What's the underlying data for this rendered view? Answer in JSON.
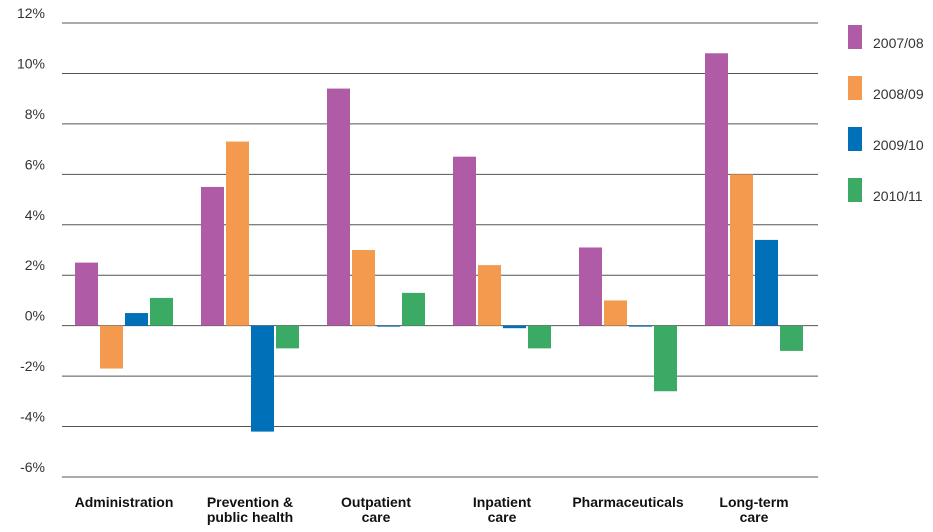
{
  "chart_data": {
    "type": "bar",
    "categories": [
      [
        "Administration"
      ],
      [
        "Prevention &",
        "public health"
      ],
      [
        "Outpatient",
        "care"
      ],
      [
        "Inpatient",
        "care"
      ],
      [
        "Pharmaceuticals"
      ],
      [
        "Long-term",
        "care"
      ]
    ],
    "series": [
      {
        "name": "2007/08",
        "color": "#b05ba5",
        "values": [
          2.5,
          5.5,
          9.4,
          6.7,
          3.1,
          10.8
        ]
      },
      {
        "name": "2008/09",
        "color": "#f39a4f",
        "values": [
          -1.7,
          7.3,
          3.0,
          2.4,
          1.0,
          6.0
        ]
      },
      {
        "name": "2009/10",
        "color": "#0070b8",
        "values": [
          0.5,
          -4.2,
          0.0,
          -0.1,
          0.0,
          3.4
        ]
      },
      {
        "name": "2010/11",
        "color": "#3aaa65",
        "values": [
          1.1,
          -0.9,
          1.3,
          -0.9,
          -2.6,
          -1.0
        ]
      }
    ],
    "yticks": [
      "-6%",
      "-4%",
      "-2%",
      "0%",
      "2%",
      "4%",
      "6%",
      "8%",
      "10%",
      "12%"
    ],
    "ylim": [
      -6,
      12
    ],
    "grid": true,
    "legend": "right"
  }
}
